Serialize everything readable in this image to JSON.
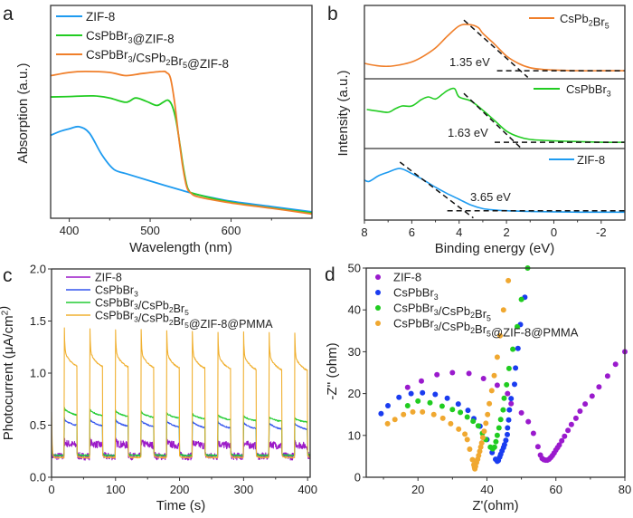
{
  "chart_data": [
    {
      "panel_label": "a",
      "type": "line",
      "xlabel": "Wavelength (nm)",
      "ylabel": "Absorption (a.u.)",
      "xlim": [
        377,
        700
      ],
      "ylim": [
        0,
        1
      ],
      "xticks": [
        400,
        500,
        600
      ],
      "yticks": [],
      "legend_position": "top-left",
      "series": [
        {
          "name": "ZIF-8",
          "color": "#1e9bf0",
          "x": [
            377,
            390,
            400,
            412,
            425,
            440,
            455,
            470,
            500,
            540,
            560,
            600,
            650,
            700
          ],
          "y": [
            0.39,
            0.41,
            0.42,
            0.43,
            0.4,
            0.3,
            0.23,
            0.21,
            0.175,
            0.13,
            0.11,
            0.08,
            0.055,
            0.03
          ]
        },
        {
          "name": "CsPbBr3@ZIF-8",
          "color": "#22cc22",
          "x": [
            377,
            400,
            430,
            450,
            470,
            482,
            495,
            508,
            516,
            522,
            527,
            532,
            537,
            541,
            545,
            548,
            555,
            600,
            650,
            700
          ],
          "y": [
            0.57,
            0.572,
            0.575,
            0.565,
            0.545,
            0.565,
            0.55,
            0.53,
            0.545,
            0.555,
            0.53,
            0.46,
            0.34,
            0.24,
            0.16,
            0.13,
            0.115,
            0.075,
            0.048,
            0.025
          ]
        },
        {
          "name": "CsPbBr3/CsPb2Br5@ZIF-8",
          "color": "#f07f2a",
          "x": [
            377,
            400,
            420,
            450,
            470,
            490,
            515,
            520,
            525,
            530,
            535,
            540,
            545,
            550,
            560,
            600,
            650,
            700
          ],
          "y": [
            0.67,
            0.685,
            0.69,
            0.685,
            0.67,
            0.68,
            0.69,
            0.685,
            0.66,
            0.55,
            0.39,
            0.25,
            0.15,
            0.12,
            0.1,
            0.072,
            0.047,
            0.02
          ]
        }
      ]
    },
    {
      "panel_label": "b",
      "type": "line",
      "xlabel": "Binding energy (eV)",
      "ylabel": "Intensity (a.u.)",
      "xlim": [
        8,
        -3
      ],
      "xticks": [
        8,
        6,
        4,
        2,
        0,
        -2
      ],
      "stacked_panels": [
        {
          "name": "CsPb2Br5",
          "color": "#f07f2a",
          "annotation": "1.35 eV",
          "x": [
            8,
            7.5,
            7,
            6.5,
            6,
            5.5,
            5,
            4.5,
            4,
            3.6,
            3.2,
            3,
            2.5,
            2,
            1.5,
            1,
            0.5,
            0,
            -1,
            -2,
            -3
          ],
          "y": [
            0.21,
            0.18,
            0.17,
            0.19,
            0.23,
            0.31,
            0.42,
            0.58,
            0.72,
            0.74,
            0.7,
            0.62,
            0.47,
            0.31,
            0.21,
            0.15,
            0.13,
            0.12,
            0.11,
            0.11,
            0.11
          ],
          "tangent": [
            [
              3.8,
              0.8
            ],
            [
              1.1,
              0.02
            ]
          ],
          "baseline": [
            [
              2.4,
              0.11
            ],
            [
              -3,
              0.11
            ]
          ]
        },
        {
          "name": "CsPbBr3",
          "color": "#22cc22",
          "annotation": "1.63 eV",
          "x": [
            7.9,
            7.5,
            7,
            6.7,
            6.4,
            6,
            5.6,
            5.3,
            5,
            4.7,
            4.5,
            4.2,
            4,
            3.5,
            3,
            2.5,
            2,
            1.5,
            1,
            0,
            -1,
            -2,
            -3
          ],
          "y": [
            0.56,
            0.54,
            0.52,
            0.57,
            0.61,
            0.61,
            0.7,
            0.74,
            0.71,
            0.78,
            0.83,
            0.86,
            0.74,
            0.68,
            0.55,
            0.4,
            0.25,
            0.17,
            0.13,
            0.11,
            0.1,
            0.09,
            0.09
          ],
          "tangent": [
            [
              3.8,
              0.79
            ],
            [
              1.4,
              0.01
            ]
          ],
          "baseline": [
            [
              2.5,
              0.09
            ],
            [
              -3,
              0.09
            ]
          ]
        },
        {
          "name": "ZIF-8",
          "color": "#1e9bf0",
          "annotation": "3.65 eV",
          "x": [
            8,
            7.8,
            7.4,
            7,
            6.5,
            6,
            5.5,
            5,
            4.5,
            4,
            3.5,
            3,
            2.5,
            2,
            1,
            0,
            -1,
            -2,
            -3
          ],
          "y": [
            0.56,
            0.54,
            0.62,
            0.67,
            0.72,
            0.65,
            0.56,
            0.46,
            0.37,
            0.29,
            0.21,
            0.16,
            0.14,
            0.13,
            0.12,
            0.115,
            0.11,
            0.11,
            0.11
          ],
          "tangent": [
            [
              6.5,
              0.81
            ],
            [
              3.4,
              0.03
            ]
          ],
          "baseline": [
            [
              4.5,
              0.13
            ],
            [
              -3,
              0.13
            ]
          ]
        }
      ]
    },
    {
      "panel_label": "c",
      "type": "line",
      "xlabel": "Time (s)",
      "ylabel": "Photocurrent (μA/cm2)",
      "xlim": [
        0,
        404
      ],
      "ylim": [
        0,
        2.0
      ],
      "xticks": [
        0,
        100,
        200,
        300,
        400
      ],
      "yticks": [
        0.0,
        0.5,
        1.0,
        1.5,
        2.0
      ],
      "ytick_labels": [
        "0.0",
        "0.5",
        "1.0",
        "1.5",
        "2.0"
      ],
      "light_period_s": 40,
      "light_on_s": 20,
      "legend_position": "top-left",
      "series": [
        {
          "name": "ZIF-8",
          "color": "#9b19c8",
          "off": 0.2,
          "on_start": [
            0.33,
            0.32
          ],
          "on_end": [
            0.31,
            0.3
          ],
          "spike": [
            0.03,
            0.03
          ],
          "initial": 0.24,
          "noisy": true
        },
        {
          "name": "CsPbBr3",
          "color": "#3355ee",
          "off": 0.21,
          "on_start": [
            0.55,
            0.51
          ],
          "on_end": [
            0.5,
            0.46
          ],
          "spike": [
            0.02,
            0.01
          ],
          "initial": 0.3,
          "noisy": false
        },
        {
          "name": "CsPbBr3/CsPb2Br5",
          "color": "#22cc33",
          "off": 0.21,
          "on_start": [
            0.65,
            0.56
          ],
          "on_end": [
            0.6,
            0.53
          ],
          "spike": [
            0.02,
            0.01
          ],
          "initial": 0.3,
          "noisy": false
        },
        {
          "name": "CsPbBr3/CsPb2Br5@ZIF-8@PMMA",
          "color": "#f0b030",
          "off": 0.19,
          "on_start": [
            1.2,
            1.15
          ],
          "on_end": [
            1.07,
            1.03
          ],
          "spike": [
            0.23,
            0.23
          ],
          "initial": 0.63,
          "noisy": false
        }
      ]
    },
    {
      "panel_label": "d",
      "type": "scatter",
      "xlabel": "Z'(ohm)",
      "ylabel": "-Z'' (ohm)",
      "xlim": [
        5,
        80
      ],
      "ylim": [
        0,
        50
      ],
      "xticks": [
        20,
        40,
        60,
        80
      ],
      "yticks": [
        0,
        10,
        20,
        30,
        40,
        50
      ],
      "legend_position": "top-left",
      "series": [
        {
          "name": "ZIF-8",
          "color": "#9a1acd",
          "x": [
            17,
            21,
            25.5,
            30,
            34.8,
            39,
            43,
            46,
            47,
            50,
            52,
            53.5,
            54.8,
            55.5,
            56,
            56.5,
            57,
            57.5,
            58,
            58.5,
            59,
            59.5,
            60,
            60.5,
            61,
            61.7,
            62.5,
            63.5,
            64.5,
            65.8,
            67,
            68.5,
            70.5,
            72.5,
            75,
            77.3,
            80
          ],
          "y": [
            21.5,
            23,
            24.5,
            25,
            24.8,
            23.6,
            22,
            20,
            17.6,
            15.4,
            13.3,
            10.5,
            7.3,
            5.3,
            4.5,
            4.2,
            4.1,
            4.1,
            4.3,
            4.7,
            5.2,
            5.8,
            6.5,
            7.1,
            7.7,
            8.7,
            9.8,
            11.2,
            12.6,
            14.1,
            15.8,
            17.5,
            19.4,
            21.6,
            24.2,
            27,
            30
          ]
        },
        {
          "name": "CsPbBr3",
          "color": "#1a3cf0",
          "x": [
            9.3,
            11.3,
            14.5,
            18,
            21.3,
            25,
            28.5,
            31.7,
            34.5,
            36.2,
            38,
            40,
            41.5,
            42.5,
            43,
            43.3,
            43.7,
            44,
            44.4,
            44.8,
            45.1,
            45.5,
            45.9,
            46,
            46.3,
            46.5,
            47,
            48,
            48.3,
            49,
            49.7,
            51
          ],
          "y": [
            15.2,
            17.1,
            19.1,
            20,
            20.2,
            19.8,
            18.9,
            17.5,
            16,
            14,
            12.2,
            9,
            5.9,
            4.3,
            3.8,
            4,
            4.8,
            5.5,
            6.3,
            7.1,
            7.8,
            8.8,
            10.2,
            11.8,
            13.7,
            16.1,
            18.8,
            22.2,
            26.1,
            30.8,
            36.5,
            43
          ]
        },
        {
          "name": "CsPbBr3/CsPb2Br5",
          "color": "#20cc20",
          "x": [
            17,
            20,
            23.5,
            27,
            30,
            32.3,
            34.3,
            36,
            37.5,
            38.7,
            39.7,
            41,
            41.7,
            42.2,
            42.6,
            43,
            43.5,
            44,
            44.7,
            45,
            45.7,
            46.4,
            47.5,
            48.8,
            50,
            51.8
          ],
          "y": [
            17.1,
            18.2,
            17.8,
            17,
            16.2,
            15.5,
            14.4,
            13.4,
            12.3,
            10.5,
            9,
            7.2,
            6.8,
            7.2,
            8.5,
            10,
            11.8,
            13.8,
            16.1,
            18.9,
            22.1,
            26,
            30.6,
            36,
            42.5,
            50
          ]
        },
        {
          "name": "CsPbBr3/CsPb2Br5@ZIF-8@PMMA",
          "color": "#f0a830",
          "x": [
            11.2,
            13.3,
            15.8,
            18.5,
            21.3,
            24.6,
            27.2,
            29.5,
            31.8,
            33.6,
            34.3,
            35,
            35.8,
            36.2,
            36.4,
            36.5,
            36.7,
            37,
            37.3,
            37.6,
            37.9,
            38.2,
            38.5,
            38.8,
            39.2,
            39.7,
            40.2,
            40.7,
            41.4,
            42.1,
            43,
            43.8,
            44.8,
            46.2
          ],
          "y": [
            12.8,
            13.8,
            15,
            15.6,
            15.6,
            15,
            14.1,
            12.8,
            11.5,
            10.3,
            9,
            6.7,
            4.2,
            3,
            2.4,
            2,
            2.6,
            3.5,
            4.3,
            5.2,
            6.2,
            7.2,
            8.2,
            9.5,
            11,
            12.9,
            15,
            17.6,
            20.7,
            24.3,
            28.7,
            33.8,
            40,
            47
          ]
        }
      ]
    }
  ]
}
